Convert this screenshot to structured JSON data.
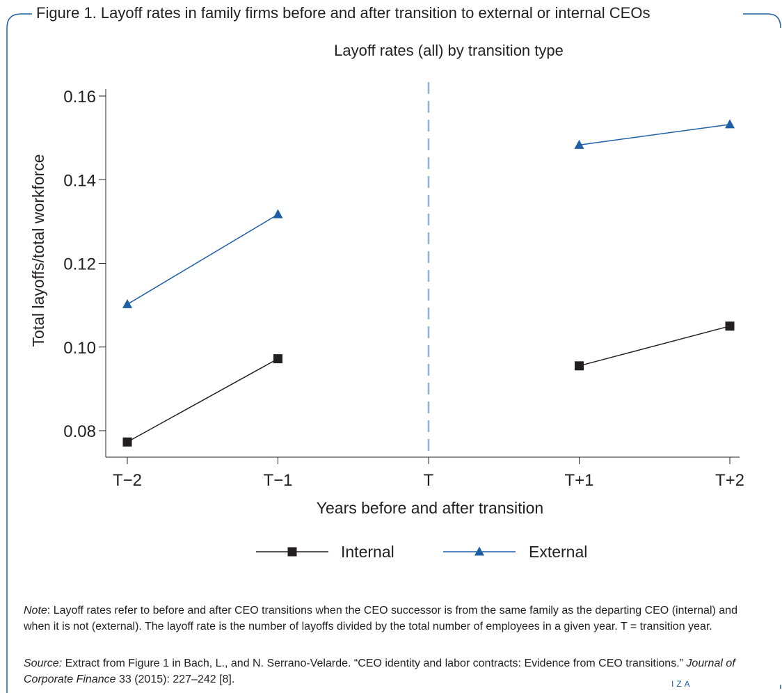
{
  "figure_title": "Figure 1. Layoff rates in family firms before and after transition to external or internal CEOs",
  "chart_data": {
    "type": "line",
    "title": "Layoff rates (all) by transition type",
    "xlabel": "Years before and after transition",
    "ylabel": "Total layoffs/total workforce",
    "x_ticks": [
      "T−2",
      "T−1",
      "T",
      "T+1",
      "T+2"
    ],
    "x_tick_values": [
      -2,
      -1,
      0,
      1,
      2
    ],
    "y_ticks": [
      "0.08",
      "0.10",
      "0.12",
      "0.14",
      "0.16"
    ],
    "y_tick_values": [
      0.08,
      0.1,
      0.12,
      0.14,
      0.16
    ],
    "vertical_line_at": 0,
    "series": [
      {
        "name": "Internal",
        "color": "#231f20",
        "marker": "square",
        "segments": [
          [
            {
              "x": -2,
              "y": 0.0773
            },
            {
              "x": -1,
              "y": 0.0972
            }
          ],
          [
            {
              "x": 1,
              "y": 0.0955
            },
            {
              "x": 2,
              "y": 0.105
            }
          ]
        ]
      },
      {
        "name": "External",
        "color": "#1f5fa6",
        "marker": "triangle",
        "segments": [
          [
            {
              "x": -2,
              "y": 0.1102
            },
            {
              "x": -1,
              "y": 0.1317
            }
          ],
          [
            {
              "x": 1,
              "y": 0.1483
            },
            {
              "x": 2,
              "y": 0.1532
            }
          ]
        ]
      }
    ],
    "legend": [
      "Internal",
      "External"
    ],
    "legend_position": "bottom"
  },
  "note": {
    "label": "Note",
    "text": ": Layoff rates refer to before and after CEO transitions when the CEO successor is from the same family as the departing CEO (internal) and when it is not (external). The layoff rate is the number of layoffs divided by the total number of employees in a given year. T = transition year."
  },
  "source": {
    "label": "Source:",
    "text_before": " Extract from Figure 1 in Bach, L., and N. Serrano-Velarde. “CEO identity and labor contracts: Evidence from CEO transitions.” ",
    "journal": "Journal of Corporate Finance",
    "text_after": " 33 (2015): 227–242 [8]."
  },
  "brand": "IZA",
  "colors": {
    "frame": "#1f5fa6",
    "internal": "#231f20",
    "external": "#1f5fa6",
    "divider": "#8cb4d6"
  }
}
